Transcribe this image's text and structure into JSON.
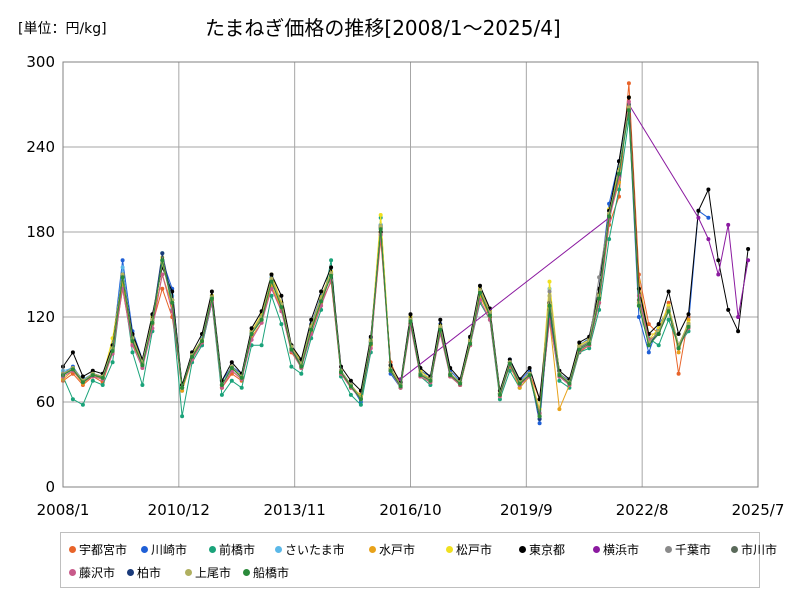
{
  "chart_data": {
    "type": "line",
    "title": "たまねぎ価格の推移[2008/1～2025/4]",
    "unit_label": "[単位：円/kg]",
    "xlabel": "",
    "ylabel": "",
    "ylim": [
      0,
      300
    ],
    "yticks": [
      "0",
      "60",
      "120",
      "180",
      "240",
      "300"
    ],
    "xlim": [
      "2008/1",
      "2025/7"
    ],
    "xticks": [
      "2008/1",
      "2010/12",
      "2013/11",
      "2016/10",
      "2019/9",
      "2022/8",
      "2025/7"
    ],
    "grid": true,
    "legend_position": "bottom",
    "x_dates": [
      "2008/1",
      "2008/4",
      "2008/7",
      "2008/10",
      "2009/1",
      "2009/4",
      "2009/7",
      "2009/10",
      "2010/1",
      "2010/4",
      "2010/7",
      "2010/10",
      "2011/1",
      "2011/4",
      "2011/7",
      "2011/10",
      "2012/1",
      "2012/4",
      "2012/7",
      "2012/10",
      "2013/1",
      "2013/4",
      "2013/7",
      "2013/10",
      "2014/1",
      "2014/4",
      "2014/7",
      "2014/10",
      "2015/1",
      "2015/4",
      "2015/7",
      "2015/10",
      "2016/1",
      "2016/4",
      "2016/7",
      "2016/10",
      "2017/1",
      "2017/4",
      "2017/7",
      "2017/10",
      "2018/1",
      "2018/4",
      "2018/7",
      "2018/10",
      "2019/1",
      "2019/4",
      "2019/7",
      "2019/10",
      "2020/1",
      "2020/4",
      "2020/7",
      "2020/10",
      "2021/1",
      "2021/4",
      "2021/7",
      "2021/10",
      "2022/1",
      "2022/4",
      "2022/7",
      "2022/10",
      "2023/1",
      "2023/4",
      "2023/7",
      "2023/10",
      "2024/1",
      "2024/4",
      "2024/7",
      "2024/10",
      "2025/1",
      "2025/4"
    ],
    "series": [
      {
        "name": "宇都宮市",
        "color": "#e8642a",
        "values": [
          75,
          80,
          72,
          78,
          74,
          95,
          140,
          100,
          88,
          115,
          140,
          120,
          72,
          90,
          105,
          135,
          70,
          80,
          75,
          110,
          118,
          140,
          125,
          95,
          85,
          110,
          130,
          145,
          80,
          70,
          65,
          100,
          175,
          88,
          72,
          115,
          80,
          75,
          110,
          80,
          72,
          100,
          135,
          120,
          68,
          85,
          72,
          80,
          62,
          120,
          78,
          72,
          95,
          100,
          130,
          185,
          205,
          285,
          150,
          115,
          108,
          130,
          80,
          120,
          null,
          null,
          null,
          null,
          null,
          null
        ]
      },
      {
        "name": "川崎市",
        "color": "#1f5fd6",
        "values": [
          80,
          85,
          75,
          80,
          78,
          100,
          160,
          110,
          90,
          120,
          160,
          140,
          70,
          95,
          100,
          130,
          75,
          85,
          80,
          110,
          120,
          145,
          130,
          100,
          88,
          115,
          135,
          150,
          82,
          72,
          60,
          105,
          185,
          80,
          70,
          120,
          82,
          78,
          115,
          82,
          75,
          105,
          140,
          125,
          65,
          90,
          75,
          82,
          45,
          125,
          80,
          75,
          100,
          105,
          140,
          200,
          230,
          265,
          120,
          95,
          115,
          125,
          98,
          115,
          195,
          190,
          null,
          null,
          null,
          null
        ]
      },
      {
        "name": "前橋市",
        "color": "#1aa37a",
        "values": [
          78,
          62,
          58,
          75,
          72,
          88,
          145,
          95,
          72,
          110,
          165,
          125,
          50,
          88,
          100,
          130,
          65,
          75,
          70,
          100,
          100,
          135,
          115,
          85,
          80,
          105,
          125,
          160,
          78,
          65,
          58,
          95,
          190,
          82,
          70,
          118,
          78,
          72,
          112,
          78,
          72,
          100,
          130,
          118,
          62,
          82,
          70,
          78,
          50,
          120,
          75,
          70,
          95,
          98,
          125,
          175,
          210,
          260,
          140,
          105,
          100,
          118,
          100,
          110,
          null,
          null,
          null,
          null,
          null,
          null
        ]
      },
      {
        "name": "さいたま市",
        "color": "#5bb8e8",
        "values": [
          82,
          84,
          76,
          80,
          78,
          98,
          155,
          105,
          85,
          118,
          160,
          135,
          68,
          92,
          105,
          135,
          72,
          85,
          78,
          108,
          120,
          148,
          128,
          98,
          86,
          112,
          132,
          150,
          82,
          72,
          62,
          102,
          185,
          82,
          72,
          118,
          80,
          76,
          112,
          80,
          74,
          102,
          138,
          122,
          66,
          88,
          73,
          80,
          48,
          140,
          80,
          74,
          98,
          102,
          135,
          195,
          225,
          270,
          130,
          100,
          110,
          125,
          100,
          115,
          null,
          null,
          null,
          null,
          null,
          null
        ]
      },
      {
        "name": "水戸市",
        "color": "#e8a21a",
        "values": [
          76,
          82,
          73,
          79,
          76,
          96,
          145,
          102,
          86,
          116,
          150,
          128,
          68,
          90,
          102,
          132,
          70,
          82,
          76,
          106,
          116,
          142,
          126,
          96,
          84,
          110,
          130,
          150,
          80,
          70,
          64,
          100,
          180,
          82,
          70,
          116,
          78,
          74,
          110,
          78,
          72,
          100,
          135,
          120,
          64,
          86,
          70,
          78,
          52,
          118,
          55,
          72,
          96,
          100,
          130,
          190,
          215,
          275,
          145,
          108,
          108,
          128,
          95,
          118,
          null,
          null,
          null,
          null,
          null,
          null
        ]
      },
      {
        "name": "松戸市",
        "color": "#f0e020",
        "values": [
          80,
          84,
          75,
          80,
          78,
          105,
          148,
          106,
          88,
          120,
          162,
          132,
          70,
          94,
          104,
          135,
          72,
          84,
          78,
          110,
          122,
          150,
          130,
          100,
          88,
          114,
          134,
          152,
          82,
          72,
          64,
          104,
          192,
          84,
          72,
          120,
          82,
          76,
          114,
          80,
          74,
          104,
          140,
          124,
          66,
          88,
          74,
          80,
          55,
          145,
          80,
          74,
          100,
          104,
          136,
          196,
          224,
          268,
          132,
          104,
          112,
          128,
          100,
          116,
          null,
          null,
          null,
          null,
          null,
          null
        ]
      },
      {
        "name": "東京都",
        "color": "#000000",
        "values": [
          85,
          95,
          78,
          82,
          80,
          100,
          150,
          108,
          90,
          122,
          155,
          138,
          72,
          95,
          108,
          138,
          75,
          88,
          80,
          112,
          124,
          150,
          135,
          100,
          90,
          118,
          138,
          155,
          85,
          75,
          68,
          106,
          180,
          86,
          74,
          122,
          84,
          78,
          118,
          84,
          76,
          106,
          142,
          126,
          68,
          90,
          76,
          84,
          62,
          130,
          82,
          76,
          102,
          106,
          140,
          195,
          230,
          275,
          140,
          108,
          115,
          138,
          108,
          122,
          195,
          210,
          160,
          125,
          110,
          168
        ]
      },
      {
        "name": "横浜市",
        "color": "#8b1aa0",
        "values": [
          null,
          null,
          null,
          null,
          null,
          null,
          null,
          null,
          null,
          null,
          null,
          null,
          null,
          null,
          null,
          null,
          null,
          null,
          null,
          null,
          null,
          null,
          null,
          null,
          null,
          null,
          null,
          null,
          null,
          null,
          null,
          null,
          null,
          null,
          76,
          null,
          null,
          null,
          null,
          null,
          null,
          null,
          null,
          null,
          null,
          null,
          null,
          null,
          null,
          null,
          null,
          null,
          null,
          null,
          null,
          190,
          220,
          270,
          null,
          null,
          null,
          null,
          null,
          null,
          190,
          175,
          150,
          185,
          120,
          160
        ]
      },
      {
        "name": "千葉市",
        "color": "#8a8a8a",
        "values": [
          80,
          83,
          74,
          79,
          77,
          97,
          150,
          104,
          86,
          118,
          158,
          130,
          70,
          92,
          103,
          133,
          72,
          84,
          78,
          108,
          118,
          146,
          128,
          98,
          86,
          112,
          132,
          150,
          82,
          72,
          63,
          102,
          183,
          83,
          72,
          118,
          80,
          76,
          112,
          80,
          74,
          102,
          138,
          122,
          66,
          88,
          74,
          80,
          52,
          138,
          80,
          74,
          98,
          102,
          148,
          192,
          222,
          268,
          128,
          102,
          110,
          126,
          100,
          114,
          null,
          null,
          null,
          null,
          null,
          null
        ]
      },
      {
        "name": "市川市",
        "color": "#5a6a5a",
        "values": [
          79,
          84,
          75,
          80,
          77,
          98,
          150,
          104,
          87,
          118,
          158,
          132,
          70,
          92,
          104,
          134,
          72,
          84,
          78,
          108,
          120,
          146,
          128,
          98,
          86,
          112,
          132,
          150,
          82,
          72,
          63,
          102,
          183,
          83,
          72,
          118,
          80,
          76,
          112,
          80,
          74,
          102,
          138,
          122,
          66,
          88,
          74,
          80,
          50,
          128,
          80,
          74,
          98,
          102,
          134,
          192,
          222,
          270,
          132,
          102,
          110,
          126,
          100,
          114,
          null,
          null,
          null,
          null,
          null,
          null
        ]
      },
      {
        "name": "藤沢市",
        "color": "#c85a8a",
        "values": [
          78,
          82,
          74,
          78,
          76,
          94,
          140,
          100,
          84,
          112,
          150,
          124,
          70,
          90,
          102,
          130,
          70,
          82,
          76,
          104,
          116,
          140,
          124,
          96,
          84,
          108,
          128,
          146,
          80,
          70,
          62,
          98,
          178,
          82,
          70,
          114,
          78,
          74,
          108,
          78,
          72,
          100,
          132,
          118,
          64,
          86,
          72,
          78,
          52,
          118,
          78,
          72,
          96,
          100,
          130,
          188,
          218,
          272,
          135,
          104,
          108,
          124,
          98,
          112,
          null,
          null,
          null,
          null,
          null,
          null
        ]
      },
      {
        "name": "柏市",
        "color": "#1a3a7a",
        "values": [
          80,
          84,
          75,
          80,
          78,
          98,
          150,
          105,
          88,
          118,
          165,
          132,
          70,
          93,
          104,
          134,
          72,
          85,
          78,
          109,
          120,
          147,
          129,
          99,
          87,
          113,
          133,
          151,
          82,
          72,
          63,
          103,
          184,
          83,
          72,
          118,
          80,
          76,
          113,
          80,
          74,
          103,
          139,
          123,
          66,
          88,
          74,
          80,
          48,
          125,
          80,
          74,
          99,
          103,
          135,
          193,
          223,
          268,
          130,
          100,
          110,
          126,
          100,
          115,
          null,
          null,
          null,
          null,
          null,
          null
        ]
      },
      {
        "name": "上尾市",
        "color": "#b0b060",
        "values": [
          80,
          84,
          75,
          80,
          78,
          98,
          150,
          105,
          88,
          118,
          158,
          132,
          70,
          93,
          104,
          134,
          72,
          85,
          78,
          109,
          120,
          147,
          129,
          99,
          87,
          113,
          133,
          151,
          82,
          72,
          63,
          103,
          184,
          83,
          72,
          118,
          80,
          76,
          113,
          80,
          74,
          103,
          139,
          123,
          66,
          88,
          74,
          80,
          50,
          135,
          80,
          74,
          99,
          103,
          135,
          193,
          223,
          268,
          130,
          102,
          110,
          126,
          100,
          115,
          null,
          null,
          null,
          null,
          null,
          null
        ]
      },
      {
        "name": "船橋市",
        "color": "#2a8a3a",
        "values": [
          79,
          83,
          74,
          79,
          77,
          96,
          148,
          103,
          86,
          116,
          160,
          130,
          70,
          92,
          103,
          133,
          72,
          84,
          77,
          108,
          118,
          145,
          127,
          97,
          85,
          111,
          131,
          149,
          81,
          71,
          62,
          101,
          182,
          82,
          71,
          117,
          79,
          75,
          111,
          79,
          73,
          101,
          137,
          121,
          65,
          87,
          73,
          79,
          50,
          128,
          79,
          73,
          97,
          101,
          133,
          191,
          221,
          266,
          128,
          100,
          108,
          124,
          98,
          113,
          null,
          null,
          null,
          null,
          null,
          null
        ]
      }
    ]
  }
}
